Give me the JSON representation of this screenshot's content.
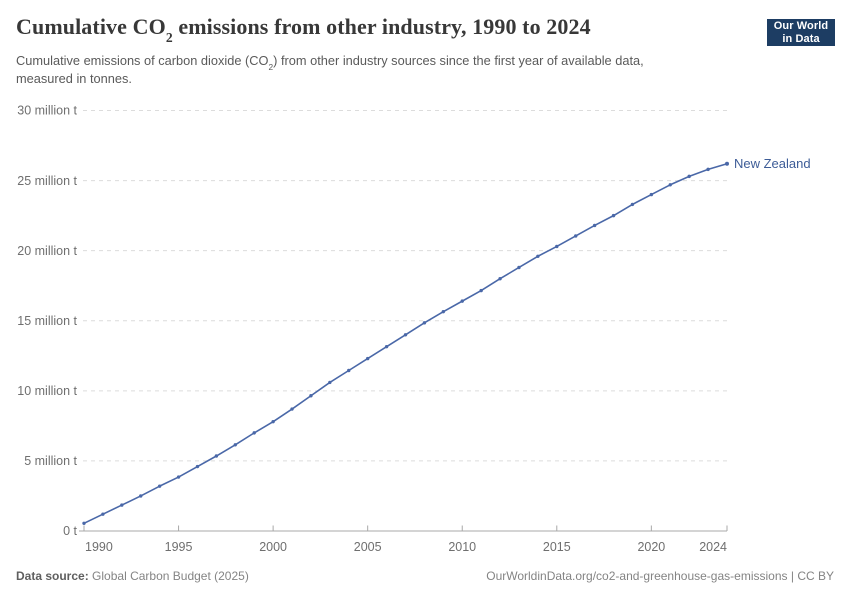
{
  "header": {
    "title_pre": "Cumulative CO",
    "title_sub": "2",
    "title_post": " emissions from other industry, 1990 to 2024",
    "subtitle_line1_pre": "Cumulative emissions of carbon dioxide (CO",
    "subtitle_line1_sub": "2",
    "subtitle_line1_post": ") from other industry sources since the first year of available data,",
    "subtitle_line2": "measured in tonnes.",
    "logo_line1": "Our World",
    "logo_line2": "in Data",
    "logo_bg": "#1d3d63",
    "logo_bar": "#d42b2b"
  },
  "chart_data": {
    "type": "line",
    "title": "Cumulative CO2 emissions from other industry, 1990 to 2024",
    "value_unit": "million t",
    "xlim": [
      1990,
      2024
    ],
    "ylim": [
      0,
      30
    ],
    "grid": true,
    "x_ticks": [
      1990,
      1995,
      2000,
      2005,
      2010,
      2015,
      2020,
      2024
    ],
    "y_ticks": [
      {
        "value": 0,
        "label": "0 t"
      },
      {
        "value": 5,
        "label": "5 million t"
      },
      {
        "value": 10,
        "label": "10 million t"
      },
      {
        "value": 15,
        "label": "15 million t"
      },
      {
        "value": 20,
        "label": "20 million t"
      },
      {
        "value": 25,
        "label": "25 million t"
      },
      {
        "value": 30,
        "label": "30 million t"
      }
    ],
    "series": [
      {
        "name": "New Zealand",
        "color": "#4a68a8",
        "label_color": "#3d5c97",
        "years": [
          1990,
          1991,
          1992,
          1993,
          1994,
          1995,
          1996,
          1997,
          1998,
          1999,
          2000,
          2001,
          2002,
          2003,
          2004,
          2005,
          2006,
          2007,
          2008,
          2009,
          2010,
          2011,
          2012,
          2013,
          2014,
          2015,
          2016,
          2017,
          2018,
          2019,
          2020,
          2021,
          2022,
          2023,
          2024
        ],
        "values_million_t": [
          0.55,
          1.2,
          1.85,
          2.5,
          3.2,
          3.85,
          4.6,
          5.35,
          6.15,
          7.0,
          7.8,
          8.7,
          9.65,
          10.6,
          11.45,
          12.3,
          13.15,
          14.0,
          14.85,
          15.65,
          16.4,
          17.15,
          18.0,
          18.8,
          19.6,
          20.3,
          21.05,
          21.8,
          22.5,
          23.3,
          24.0,
          24.7,
          25.3,
          25.8,
          26.2
        ]
      }
    ]
  },
  "footer": {
    "source_label": "Data source:",
    "source_value": "Global Carbon Budget (2025)",
    "url": "OurWorldinData.org/co2-and-greenhouse-gas-emissions",
    "divider": "|",
    "license": "CC BY"
  },
  "colors": {
    "grid": "#dcdcdc",
    "axis": "#a8a8a8",
    "tick_label": "#6f6f6f",
    "title": "#383838",
    "subtitle": "#5a5a5a",
    "footer": "#848484"
  }
}
